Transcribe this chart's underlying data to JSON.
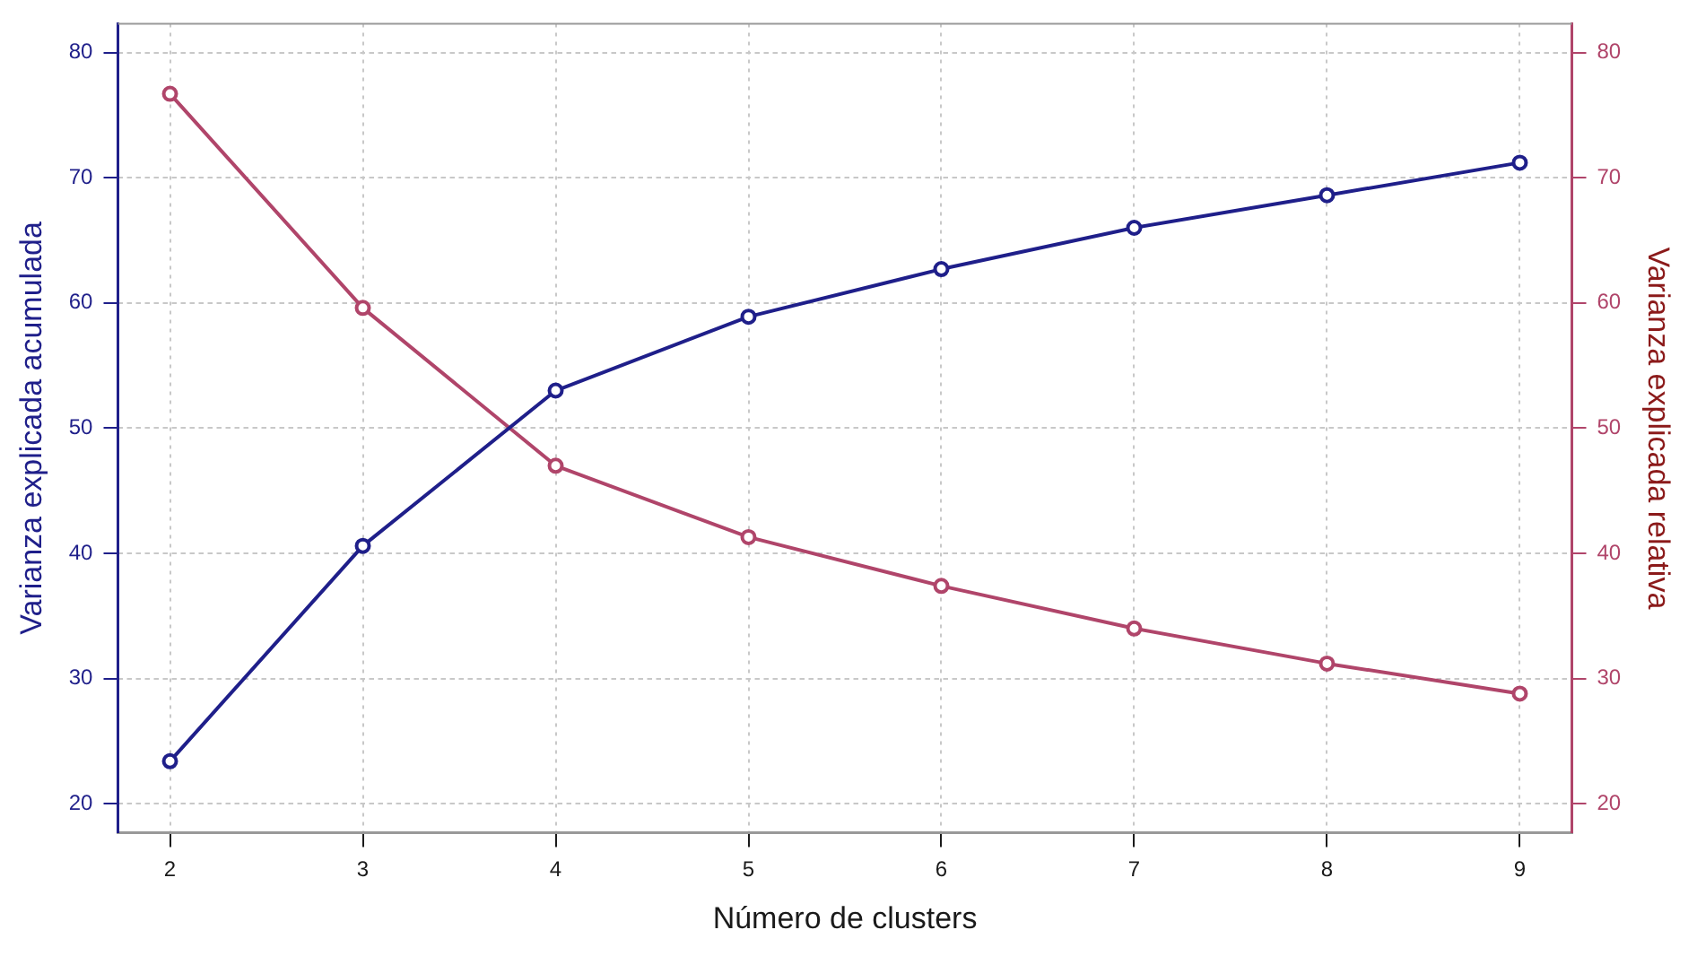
{
  "chart_data": {
    "type": "line",
    "xlabel": "Número de clusters",
    "ylabel": "Varianza explicada acumulada",
    "y2label": "Varianza explicada relativa",
    "x": [
      2,
      3,
      4,
      5,
      6,
      7,
      8,
      9
    ],
    "xlim": [
      1.73,
      9.27
    ],
    "xticks": [
      2,
      3,
      4,
      5,
      6,
      7,
      8,
      9
    ],
    "ylim": [
      17.7,
      82.3
    ],
    "yticks": [
      20,
      30,
      40,
      50,
      60,
      70,
      80
    ],
    "y2lim": [
      17.7,
      82.3
    ],
    "y2ticks": [
      20,
      30,
      40,
      50,
      60,
      70,
      80
    ],
    "grid": true,
    "marker": "circle",
    "line_style": "solid",
    "series": [
      {
        "color": "#1f1f8a",
        "values": [
          23.4,
          40.6,
          53.0,
          58.9,
          62.7,
          66.0,
          68.6,
          71.2
        ]
      },
      {
        "color": "#b0456a",
        "axis": "y2",
        "values": [
          76.7,
          59.6,
          47.0,
          41.3,
          37.4,
          34.0,
          31.2,
          28.8
        ]
      }
    ]
  }
}
